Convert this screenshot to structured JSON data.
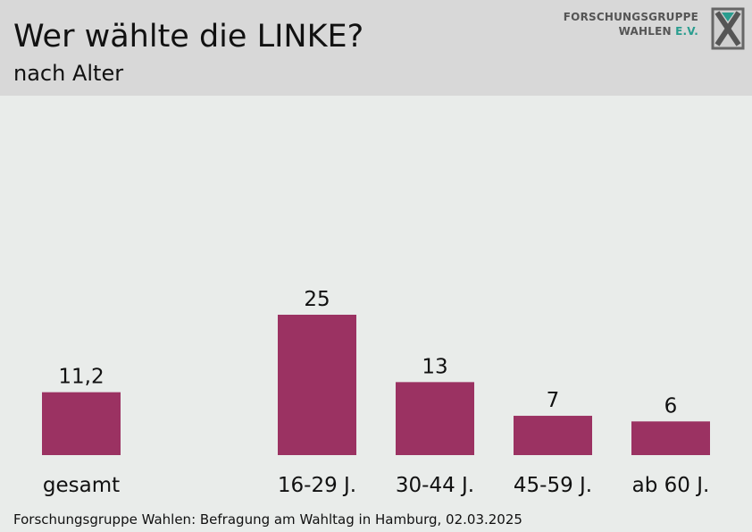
{
  "header": {
    "title": "Wer wählte die LINKE?",
    "subtitle": "nach Alter"
  },
  "logo": {
    "line1": "FORSCHUNGSGRUPPE",
    "line2_main": "WAHLEN ",
    "line2_accent": "E.V.",
    "accent_color": "#2a9d8f",
    "icon": "fgw-x-logo-icon"
  },
  "source": "Forschungsgruppe Wahlen: Befragung am Wahltag in Hamburg, 02.03.2025",
  "colors": {
    "bar": "#9b3262",
    "background": "#e9ecea",
    "header_bg": "#d8d8d8"
  },
  "chart_data": {
    "type": "bar",
    "categories": [
      "gesamt",
      "16-29 J.",
      "30-44 J.",
      "45-59 J.",
      "ab 60 J."
    ],
    "values": [
      11.2,
      25,
      13,
      7,
      6
    ],
    "value_labels": [
      "11,2",
      "25",
      "13",
      "7",
      "6"
    ],
    "title": "Wer wählte die LINKE?",
    "subtitle": "nach Alter",
    "xlabel": "",
    "ylabel": "",
    "ylim": [
      0,
      25
    ],
    "grid": false,
    "legend": "none"
  }
}
